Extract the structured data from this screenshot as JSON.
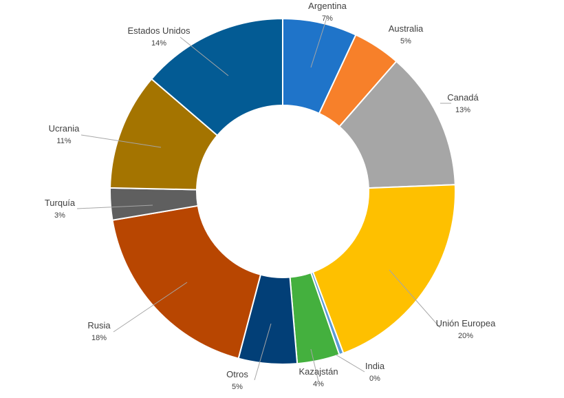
{
  "chart_data": {
    "type": "pie",
    "variant": "donut",
    "title": "",
    "legend": "none",
    "slices": [
      {
        "name": "Argentina",
        "label": "7%",
        "value": 7,
        "color": "#1f74c9"
      },
      {
        "name": "Australia",
        "label": "5%",
        "value": 4.5,
        "color": "#f7802a"
      },
      {
        "name": "Canadá",
        "label": "13%",
        "value": 13,
        "color": "#a6a6a6"
      },
      {
        "name": "Unión Europea",
        "label": "20%",
        "value": 20,
        "color": "#fec000"
      },
      {
        "name": "India",
        "label": "0%",
        "value": 0.4,
        "color": "#5b9bd5"
      },
      {
        "name": "Kazajstán",
        "label": "4%",
        "value": 4,
        "color": "#44b03e"
      },
      {
        "name": "Otros",
        "label": "5%",
        "value": 5.5,
        "color": "#023f77"
      },
      {
        "name": "Rusia",
        "label": "18%",
        "value": 18.3,
        "color": "#b84601"
      },
      {
        "name": "Turquía",
        "label": "3%",
        "value": 3,
        "color": "#5f5f5f"
      },
      {
        "name": "Ucrania",
        "label": "11%",
        "value": 11,
        "color": "#a47400"
      },
      {
        "name": "Estados Unidos",
        "label": "14%",
        "value": 13.8,
        "color": "#035b94"
      }
    ]
  }
}
